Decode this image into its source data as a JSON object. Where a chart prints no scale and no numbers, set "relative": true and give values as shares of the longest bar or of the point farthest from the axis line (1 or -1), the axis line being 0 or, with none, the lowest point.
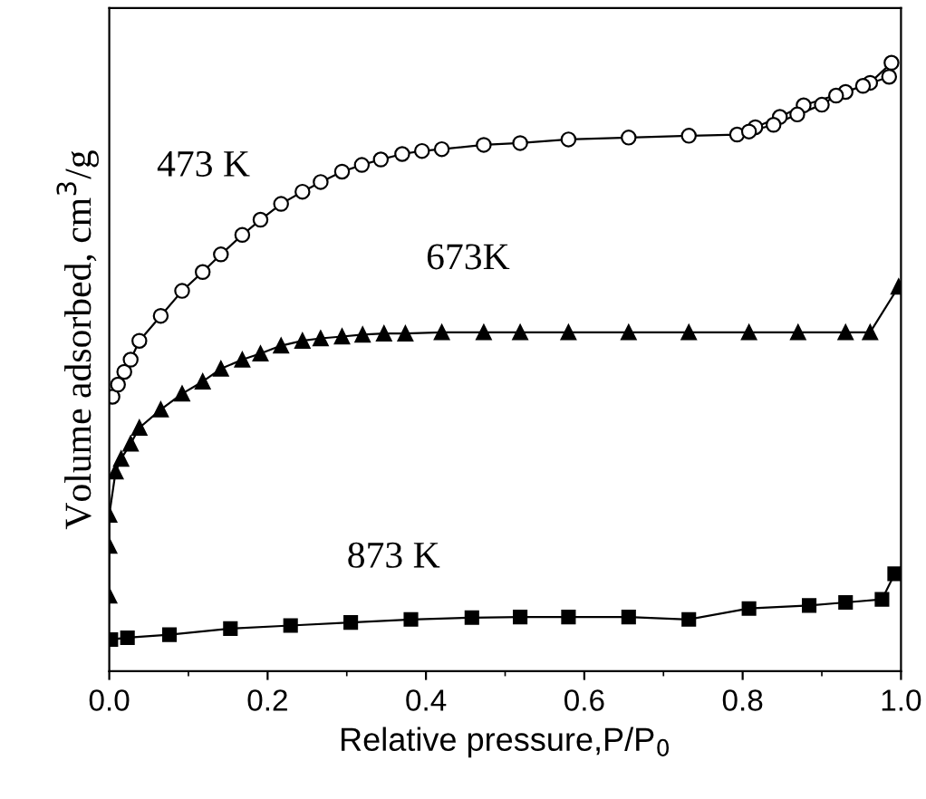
{
  "chart_data": {
    "type": "line",
    "relative": true,
    "xlabel": "Relative pressure,P/P$_{0}$",
    "ylabel": "Volume adsorbed, cm$^{3}$/g",
    "xlim": [
      0,
      1
    ],
    "xticks": [
      {
        "value": 0,
        "label": "0.0"
      },
      {
        "value": 0.2,
        "label": "0.2"
      },
      {
        "value": 0.4,
        "label": "0.4"
      },
      {
        "value": 0.6,
        "label": "0.6"
      },
      {
        "value": 0.8,
        "label": "0.8"
      },
      {
        "value": 1,
        "label": "1.0"
      }
    ],
    "grid": false,
    "legend": false,
    "series": [
      {
        "name": "473 K",
        "color": "#000000",
        "marker": "circle",
        "x": [
          0.004,
          0.011,
          0.019,
          0.027,
          0.038,
          0.065,
          0.092,
          0.118,
          0.141,
          0.168,
          0.191,
          0.217,
          0.244,
          0.267,
          0.294,
          0.319,
          0.343,
          0.37,
          0.395,
          0.42,
          0.473,
          0.519,
          0.58,
          0.656,
          0.732,
          0.793,
          0.816,
          0.847,
          0.877,
          0.93,
          0.961,
          0.988,
          0.985,
          0.952,
          0.918,
          0.9,
          0.869,
          0.839,
          0.808
        ],
        "values": [
          0.451,
          0.471,
          0.492,
          0.512,
          0.543,
          0.584,
          0.625,
          0.656,
          0.685,
          0.717,
          0.742,
          0.768,
          0.788,
          0.804,
          0.821,
          0.832,
          0.841,
          0.85,
          0.855,
          0.858,
          0.865,
          0.868,
          0.874,
          0.877,
          0.88,
          0.882,
          0.894,
          0.911,
          0.93,
          0.952,
          0.967,
          1,
          0.977,
          0.962,
          0.946,
          0.931,
          0.915,
          0.898,
          0.887
        ]
      },
      {
        "name": "673K",
        "color": "#000000",
        "marker": "triangle",
        "x": [
          0.0,
          0.0,
          0.0,
          0.008,
          0.015,
          0.027,
          0.038,
          0.065,
          0.092,
          0.118,
          0.141,
          0.168,
          0.191,
          0.217,
          0.244,
          0.267,
          0.294,
          0.32,
          0.347,
          0.374,
          0.42,
          0.473,
          0.519,
          0.58,
          0.656,
          0.732,
          0.808,
          0.87,
          0.93,
          0.961,
          0.997
        ],
        "values": [
          0.124,
          0.206,
          0.257,
          0.328,
          0.349,
          0.374,
          0.4,
          0.43,
          0.456,
          0.476,
          0.497,
          0.512,
          0.522,
          0.535,
          0.543,
          0.547,
          0.55,
          0.553,
          0.555,
          0.555,
          0.557,
          0.557,
          0.557,
          0.557,
          0.557,
          0.557,
          0.557,
          0.557,
          0.557,
          0.557,
          0.632
        ]
      },
      {
        "name": "873 K",
        "color": "#000000",
        "marker": "square",
        "x": [
          0.002,
          0.023,
          0.076,
          0.153,
          0.229,
          0.305,
          0.381,
          0.458,
          0.519,
          0.58,
          0.656,
          0.732,
          0.808,
          0.884,
          0.93,
          0.976,
          0.992
        ],
        "values": [
          0.052,
          0.055,
          0.06,
          0.07,
          0.075,
          0.08,
          0.085,
          0.088,
          0.089,
          0.089,
          0.089,
          0.085,
          0.103,
          0.108,
          0.113,
          0.118,
          0.16
        ]
      }
    ]
  }
}
